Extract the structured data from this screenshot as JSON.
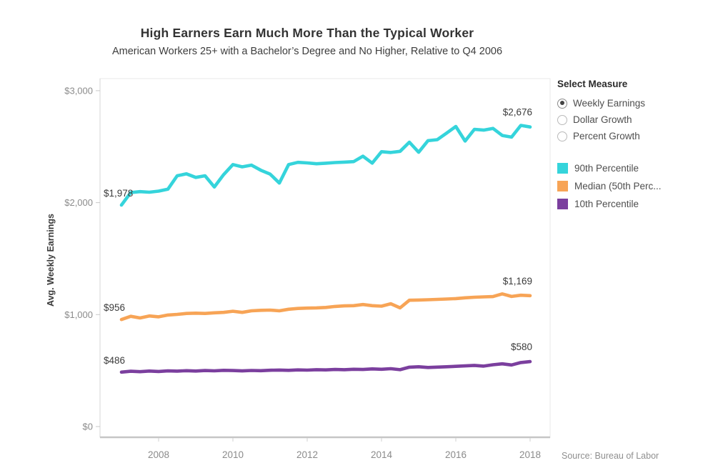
{
  "title": "High Earners Earn Much More Than the Typical Worker",
  "subtitle": "American Workers 25+ with a Bachelor’s Degree and No Higher, Relative to Q4 2006",
  "source_note": "Source: Bureau of Labor",
  "controls": {
    "header": "Select Measure",
    "options": [
      {
        "label": "Weekly Earnings",
        "selected": true
      },
      {
        "label": "Dollar Growth",
        "selected": false
      },
      {
        "label": "Percent Growth",
        "selected": false
      }
    ]
  },
  "chart_data": {
    "type": "line",
    "title": "High Earners Earn Much More Than the Typical Worker",
    "subtitle": "American Workers 25+ with a Bachelor’s Degree and No Higher, Relative to Q4 2006",
    "ylabel": "Avg. Weekly Earnings",
    "xlabel": "",
    "ylim": [
      0,
      3100
    ],
    "xlim": [
      2006.2,
      2018.5
    ],
    "grid": false,
    "legend_position": "right",
    "x_start": 2007.0,
    "x_step": 0.25,
    "x_ticks": [
      {
        "v": 2008,
        "label": "2008"
      },
      {
        "v": 2010,
        "label": "2010"
      },
      {
        "v": 2012,
        "label": "2012"
      },
      {
        "v": 2014,
        "label": "2014"
      },
      {
        "v": 2016,
        "label": "2016"
      },
      {
        "v": 2018,
        "label": "2018"
      }
    ],
    "y_ticks": [
      {
        "v": 0,
        "label": "$0"
      },
      {
        "v": 1000,
        "label": "$1,000"
      },
      {
        "v": 2000,
        "label": "$2,000"
      },
      {
        "v": 3000,
        "label": "$3,000"
      }
    ],
    "series": [
      {
        "name": "90th Percentile",
        "color": "#35d4db",
        "first_label": "$1,978",
        "last_label": "$2,676",
        "values": [
          1978,
          2090,
          2098,
          2093,
          2103,
          2120,
          2240,
          2257,
          2225,
          2240,
          2140,
          2250,
          2340,
          2320,
          2335,
          2290,
          2255,
          2175,
          2340,
          2360,
          2355,
          2347,
          2352,
          2358,
          2362,
          2366,
          2415,
          2353,
          2455,
          2448,
          2458,
          2540,
          2450,
          2553,
          2562,
          2620,
          2680,
          2550,
          2655,
          2648,
          2663,
          2600,
          2585,
          2690,
          2676
        ]
      },
      {
        "name": "Median (50th Perc...",
        "color": "#f7a456",
        "first_label": "$956",
        "last_label": "$1,169",
        "values": [
          956,
          985,
          970,
          988,
          980,
          996,
          1002,
          1010,
          1013,
          1010,
          1016,
          1020,
          1030,
          1020,
          1034,
          1038,
          1040,
          1034,
          1048,
          1055,
          1058,
          1060,
          1064,
          1073,
          1078,
          1080,
          1090,
          1080,
          1075,
          1097,
          1060,
          1128,
          1130,
          1133,
          1136,
          1139,
          1143,
          1150,
          1155,
          1158,
          1161,
          1185,
          1162,
          1173,
          1169
        ]
      },
      {
        "name": "10th Percentile",
        "color": "#7b3f9e",
        "first_label": "$486",
        "last_label": "$580",
        "values": [
          486,
          494,
          490,
          496,
          492,
          497,
          495,
          499,
          496,
          500,
          498,
          502,
          500,
          497,
          501,
          499,
          503,
          505,
          502,
          506,
          504,
          508,
          506,
          510,
          508,
          512,
          510,
          515,
          512,
          517,
          508,
          530,
          534,
          528,
          531,
          534,
          538,
          542,
          546,
          540,
          552,
          560,
          550,
          572,
          580
        ]
      }
    ]
  }
}
